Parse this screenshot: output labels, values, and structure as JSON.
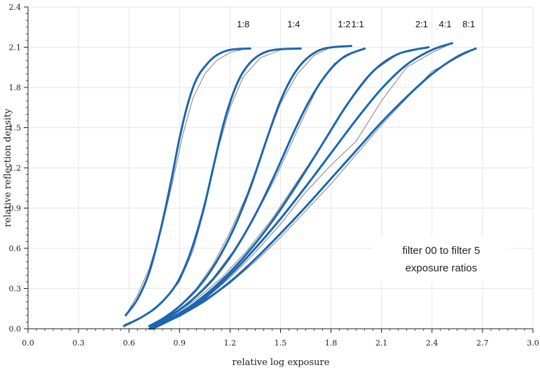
{
  "chart_data": {
    "type": "line",
    "title": "",
    "xlabel": "relative log exposure",
    "ylabel": "relative reflection density",
    "xlim": [
      0.0,
      3.0
    ],
    "ylim": [
      0.0,
      2.4
    ],
    "xticks": [
      "0.0",
      "0.3",
      "0.6",
      "0.9",
      "1.2",
      "1.5",
      "1.8",
      "2.1",
      "2.4",
      "2.7",
      "3.0"
    ],
    "yticks": [
      "0.0",
      "0.3",
      "0.6",
      "0.9",
      "1.2",
      "1.5",
      "1.8",
      "2.1",
      "2.4"
    ],
    "grid": true,
    "annotation": [
      "filter 00 to filter 5",
      "exposure ratios"
    ],
    "colors": {
      "fit": "#1a66b3",
      "measured": "#808080"
    },
    "series": [
      {
        "name": "1:8",
        "measured": [
          [
            0.58,
            0.1
          ],
          [
            0.65,
            0.25
          ],
          [
            0.72,
            0.45
          ],
          [
            0.8,
            0.78
          ],
          [
            0.86,
            1.1
          ],
          [
            0.92,
            1.45
          ],
          [
            0.98,
            1.72
          ],
          [
            1.05,
            1.9
          ],
          [
            1.12,
            2.0
          ],
          [
            1.2,
            2.06
          ],
          [
            1.3,
            2.09
          ]
        ],
        "fit": [
          [
            0.58,
            0.1
          ],
          [
            0.65,
            0.22
          ],
          [
            0.72,
            0.42
          ],
          [
            0.79,
            0.75
          ],
          [
            0.85,
            1.1
          ],
          [
            0.9,
            1.42
          ],
          [
            0.95,
            1.68
          ],
          [
            1.0,
            1.86
          ],
          [
            1.06,
            1.97
          ],
          [
            1.12,
            2.04
          ],
          [
            1.2,
            2.08
          ],
          [
            1.32,
            2.09
          ]
        ]
      },
      {
        "name": "1:4",
        "measured": [
          [
            0.57,
            0.03
          ],
          [
            0.7,
            0.1
          ],
          [
            0.8,
            0.2
          ],
          [
            0.9,
            0.35
          ],
          [
            0.98,
            0.58
          ],
          [
            1.05,
            0.9
          ],
          [
            1.12,
            1.3
          ],
          [
            1.2,
            1.65
          ],
          [
            1.28,
            1.88
          ],
          [
            1.38,
            2.02
          ],
          [
            1.5,
            2.08
          ],
          [
            1.62,
            2.09
          ]
        ],
        "fit": [
          [
            0.57,
            0.02
          ],
          [
            0.68,
            0.09
          ],
          [
            0.78,
            0.18
          ],
          [
            0.88,
            0.33
          ],
          [
            0.96,
            0.55
          ],
          [
            1.04,
            0.88
          ],
          [
            1.1,
            1.2
          ],
          [
            1.16,
            1.52
          ],
          [
            1.22,
            1.76
          ],
          [
            1.28,
            1.92
          ],
          [
            1.36,
            2.03
          ],
          [
            1.46,
            2.08
          ],
          [
            1.62,
            2.09
          ]
        ]
      },
      {
        "name": "1:2",
        "measured": [
          [
            0.72,
            0.02
          ],
          [
            0.8,
            0.08
          ],
          [
            0.9,
            0.17
          ],
          [
            1.0,
            0.3
          ],
          [
            1.1,
            0.48
          ],
          [
            1.2,
            0.72
          ],
          [
            1.3,
            1.0
          ],
          [
            1.4,
            1.35
          ],
          [
            1.5,
            1.68
          ],
          [
            1.6,
            1.9
          ],
          [
            1.7,
            2.04
          ],
          [
            1.8,
            2.1
          ],
          [
            1.92,
            2.11
          ]
        ],
        "fit": [
          [
            0.72,
            0.02
          ],
          [
            0.82,
            0.09
          ],
          [
            0.92,
            0.19
          ],
          [
            1.02,
            0.32
          ],
          [
            1.12,
            0.5
          ],
          [
            1.22,
            0.74
          ],
          [
            1.32,
            1.05
          ],
          [
            1.42,
            1.42
          ],
          [
            1.5,
            1.7
          ],
          [
            1.58,
            1.9
          ],
          [
            1.66,
            2.02
          ],
          [
            1.76,
            2.09
          ],
          [
            1.92,
            2.11
          ]
        ]
      },
      {
        "name": "1:1",
        "measured": [
          [
            0.73,
            0.02
          ],
          [
            0.85,
            0.1
          ],
          [
            0.98,
            0.22
          ],
          [
            1.1,
            0.38
          ],
          [
            1.22,
            0.58
          ],
          [
            1.35,
            0.84
          ],
          [
            1.48,
            1.15
          ],
          [
            1.6,
            1.48
          ],
          [
            1.72,
            1.8
          ],
          [
            1.82,
            1.98
          ],
          [
            1.92,
            2.05
          ],
          [
            2.0,
            2.09
          ]
        ],
        "fit": [
          [
            0.73,
            0.02
          ],
          [
            0.85,
            0.1
          ],
          [
            0.97,
            0.21
          ],
          [
            1.1,
            0.37
          ],
          [
            1.22,
            0.57
          ],
          [
            1.35,
            0.85
          ],
          [
            1.47,
            1.16
          ],
          [
            1.58,
            1.47
          ],
          [
            1.68,
            1.72
          ],
          [
            1.78,
            1.91
          ],
          [
            1.88,
            2.03
          ],
          [
            2.0,
            2.09
          ]
        ]
      },
      {
        "name": "2:1",
        "measured": [
          [
            0.72,
            0.0
          ],
          [
            0.85,
            0.09
          ],
          [
            1.0,
            0.22
          ],
          [
            1.15,
            0.38
          ],
          [
            1.3,
            0.58
          ],
          [
            1.45,
            0.82
          ],
          [
            1.6,
            1.1
          ],
          [
            1.75,
            1.38
          ],
          [
            1.9,
            1.68
          ],
          [
            2.05,
            1.92
          ],
          [
            2.2,
            2.05
          ],
          [
            2.38,
            2.1
          ]
        ],
        "fit": [
          [
            0.72,
            0.0
          ],
          [
            0.85,
            0.08
          ],
          [
            1.0,
            0.2
          ],
          [
            1.15,
            0.36
          ],
          [
            1.3,
            0.56
          ],
          [
            1.45,
            0.8
          ],
          [
            1.6,
            1.08
          ],
          [
            1.75,
            1.38
          ],
          [
            1.9,
            1.68
          ],
          [
            2.05,
            1.92
          ],
          [
            2.2,
            2.05
          ],
          [
            2.38,
            2.1
          ]
        ]
      },
      {
        "name": "4:1",
        "measured": [
          [
            0.73,
            0.0
          ],
          [
            0.9,
            0.1
          ],
          [
            1.05,
            0.22
          ],
          [
            1.2,
            0.38
          ],
          [
            1.35,
            0.57
          ],
          [
            1.5,
            0.78
          ],
          [
            1.65,
            1.02
          ],
          [
            1.8,
            1.22
          ],
          [
            1.95,
            1.4
          ],
          [
            2.1,
            1.7
          ],
          [
            2.25,
            1.95
          ],
          [
            2.4,
            2.06
          ],
          [
            2.52,
            2.13
          ]
        ],
        "fit": [
          [
            0.73,
            0.0
          ],
          [
            0.9,
            0.1
          ],
          [
            1.05,
            0.23
          ],
          [
            1.2,
            0.4
          ],
          [
            1.35,
            0.6
          ],
          [
            1.5,
            0.82
          ],
          [
            1.65,
            1.06
          ],
          [
            1.8,
            1.31
          ],
          [
            1.95,
            1.56
          ],
          [
            2.1,
            1.79
          ],
          [
            2.25,
            1.97
          ],
          [
            2.4,
            2.08
          ],
          [
            2.52,
            2.13
          ]
        ]
      },
      {
        "name": "8:1",
        "measured": [
          [
            0.74,
            0.0
          ],
          [
            0.9,
            0.09
          ],
          [
            1.05,
            0.2
          ],
          [
            1.2,
            0.34
          ],
          [
            1.35,
            0.5
          ],
          [
            1.5,
            0.68
          ],
          [
            1.65,
            0.88
          ],
          [
            1.8,
            1.08
          ],
          [
            1.95,
            1.3
          ],
          [
            2.1,
            1.52
          ],
          [
            2.25,
            1.72
          ],
          [
            2.4,
            1.92
          ],
          [
            2.55,
            2.02
          ],
          [
            2.66,
            2.09
          ]
        ],
        "fit": [
          [
            0.74,
            0.0
          ],
          [
            0.9,
            0.1
          ],
          [
            1.05,
            0.21
          ],
          [
            1.2,
            0.35
          ],
          [
            1.35,
            0.52
          ],
          [
            1.5,
            0.71
          ],
          [
            1.65,
            0.91
          ],
          [
            1.8,
            1.12
          ],
          [
            1.95,
            1.33
          ],
          [
            2.1,
            1.54
          ],
          [
            2.25,
            1.73
          ],
          [
            2.4,
            1.9
          ],
          [
            2.55,
            2.03
          ],
          [
            2.66,
            2.09
          ]
        ]
      }
    ]
  }
}
